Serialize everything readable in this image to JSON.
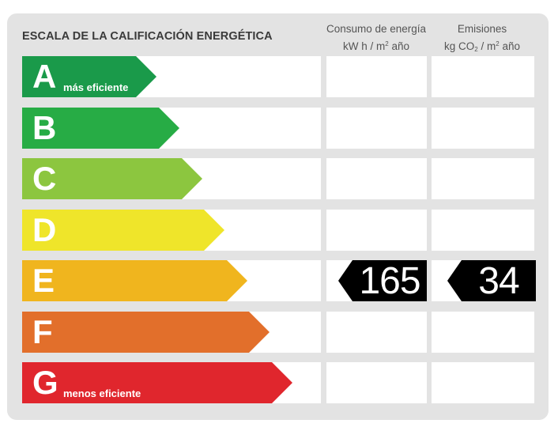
{
  "title": "ESCALA DE LA CALIFICACIÓN ENERGÉTICA",
  "columns": {
    "consumo": {
      "line1": "Consumo de energía",
      "line2_pre": "kW h  / m",
      "line2_sup": "2",
      "line2_post": " año"
    },
    "emisiones": {
      "line1": "Emisiones",
      "line2_pre": "kg CO",
      "line2_sub": "2",
      "line2_mid": "  / m",
      "line2_sup": "2",
      "line2_post": " año"
    }
  },
  "ratings": [
    {
      "letter": "A",
      "label": "más eficiente",
      "color": "#1a9a4a"
    },
    {
      "letter": "B",
      "label": "",
      "color": "#27ac45"
    },
    {
      "letter": "C",
      "label": "",
      "color": "#8cc63f"
    },
    {
      "letter": "D",
      "label": "",
      "color": "#efe52a"
    },
    {
      "letter": "E",
      "label": "",
      "color": "#f0b51e"
    },
    {
      "letter": "F",
      "label": "",
      "color": "#e26f2b"
    },
    {
      "letter": "G",
      "label": "menos eficiente",
      "color": "#e0262d"
    }
  ],
  "current_rating": "E",
  "consumo_value": "165",
  "emisiones_value": "34"
}
